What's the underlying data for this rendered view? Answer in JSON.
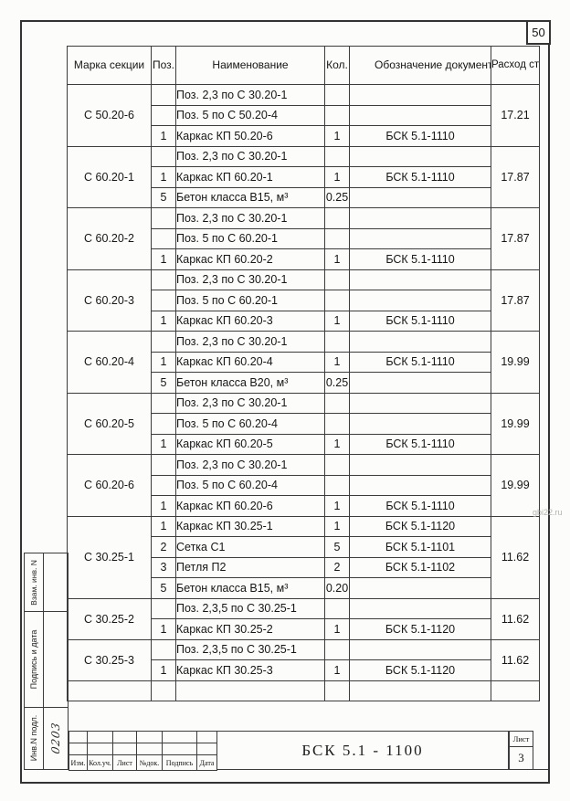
{
  "page": {
    "number": "50",
    "watermark": "gbi22.ru"
  },
  "table": {
    "headers": {
      "mark": "Марка секции",
      "pos": "Поз.",
      "name": "Наименование",
      "qty": "Кол.",
      "doc": "Обозначение документа",
      "steel": "Расход стали, кг"
    },
    "sections": [
      {
        "mark": "С 50.20-6",
        "steel": "17.21",
        "rows": [
          {
            "pos": "",
            "name": "Поз. 2,3 по С 30.20-1",
            "qty": "",
            "doc": ""
          },
          {
            "pos": "",
            "name": "Поз. 5 по С 50.20-4",
            "qty": "",
            "doc": ""
          },
          {
            "pos": "1",
            "name": "Каркас КП 50.20-6",
            "qty": "1",
            "doc": "БСК 5.1-1110"
          }
        ]
      },
      {
        "mark": "С 60.20-1",
        "steel": "17.87",
        "rows": [
          {
            "pos": "",
            "name": "Поз. 2,3 по С 30.20-1",
            "qty": "",
            "doc": ""
          },
          {
            "pos": "1",
            "name": "Каркас КП 60.20-1",
            "qty": "1",
            "doc": "БСК 5.1-1110"
          },
          {
            "pos": "5",
            "name": "Бетон класса В15, м³",
            "qty": "0.25",
            "doc": ""
          }
        ]
      },
      {
        "mark": "С 60.20-2",
        "steel": "17.87",
        "rows": [
          {
            "pos": "",
            "name": "Поз. 2,3 по С 30.20-1",
            "qty": "",
            "doc": ""
          },
          {
            "pos": "",
            "name": "Поз. 5 по С 60.20-1",
            "qty": "",
            "doc": ""
          },
          {
            "pos": "1",
            "name": "Каркас КП 60.20-2",
            "qty": "1",
            "doc": "БСК 5.1-1110"
          }
        ]
      },
      {
        "mark": "С 60.20-3",
        "steel": "17.87",
        "rows": [
          {
            "pos": "",
            "name": "Поз. 2,3 по С 30.20-1",
            "qty": "",
            "doc": ""
          },
          {
            "pos": "",
            "name": "Поз. 5 по С 60.20-1",
            "qty": "",
            "doc": ""
          },
          {
            "pos": "1",
            "name": "Каркас КП 60.20-3",
            "qty": "1",
            "doc": "БСК 5.1-1110"
          }
        ]
      },
      {
        "mark": "С 60.20-4",
        "steel": "19.99",
        "rows": [
          {
            "pos": "",
            "name": "Поз. 2,3 по С 30.20-1",
            "qty": "",
            "doc": ""
          },
          {
            "pos": "1",
            "name": "Каркас КП 60.20-4",
            "qty": "1",
            "doc": "БСК 5.1-1110"
          },
          {
            "pos": "5",
            "name": "Бетон класса В20, м³",
            "qty": "0.25",
            "doc": ""
          }
        ]
      },
      {
        "mark": "С 60.20-5",
        "steel": "19.99",
        "rows": [
          {
            "pos": "",
            "name": "Поз. 2,3 по С 30.20-1",
            "qty": "",
            "doc": ""
          },
          {
            "pos": "",
            "name": "Поз. 5 по С 60.20-4",
            "qty": "",
            "doc": ""
          },
          {
            "pos": "1",
            "name": "Каркас КП 60.20-5",
            "qty": "1",
            "doc": "БСК 5.1-1110"
          }
        ]
      },
      {
        "mark": "С 60.20-6",
        "steel": "19.99",
        "rows": [
          {
            "pos": "",
            "name": "Поз. 2,3 по С 30.20-1",
            "qty": "",
            "doc": ""
          },
          {
            "pos": "",
            "name": "Поз. 5 по С 60.20-4",
            "qty": "",
            "doc": ""
          },
          {
            "pos": "1",
            "name": "Каркас КП 60.20-6",
            "qty": "1",
            "doc": "БСК 5.1-1110"
          }
        ]
      },
      {
        "mark": "С 30.25-1",
        "steel": "11.62",
        "rows": [
          {
            "pos": "1",
            "name": "Каркас КП 30.25-1",
            "qty": "1",
            "doc": "БСК 5.1-1120"
          },
          {
            "pos": "2",
            "name": "Сетка С1",
            "qty": "5",
            "doc": "БСК 5.1-1101"
          },
          {
            "pos": "3",
            "name": "Петля П2",
            "qty": "2",
            "doc": "БСК 5.1-1102"
          },
          {
            "pos": "5",
            "name": "Бетон класса В15, м³",
            "qty": "0.20",
            "doc": ""
          }
        ]
      },
      {
        "mark": "С 30.25-2",
        "steel": "11.62",
        "rows": [
          {
            "pos": "",
            "name": "Поз. 2,3,5 по С 30.25-1",
            "qty": "",
            "doc": ""
          },
          {
            "pos": "1",
            "name": "Каркас КП 30.25-2",
            "qty": "1",
            "doc": "БСК 5.1-1120"
          }
        ]
      },
      {
        "mark": "С 30.25-3",
        "steel": "11.62",
        "rows": [
          {
            "pos": "",
            "name": "Поз. 2,3,5 по С 30.25-1",
            "qty": "",
            "doc": ""
          },
          {
            "pos": "1",
            "name": "Каркас КП 30.25-3",
            "qty": "1",
            "doc": "БСК 5.1-1120"
          }
        ]
      },
      {
        "mark": "",
        "steel": "",
        "rows": [
          {
            "pos": "",
            "name": "",
            "qty": "",
            "doc": ""
          }
        ]
      }
    ]
  },
  "stamp": {
    "columns": [
      "Изм.",
      "Кол.уч.",
      "Лист",
      "№док.",
      "Подпись",
      "Дата"
    ],
    "doc_code": "БСК 5.1 - 1100",
    "sheet_label": "Лист",
    "sheet_number": "3"
  },
  "margin": {
    "labels": [
      "Взам. инв. N",
      "Подпись и дата",
      "Инв.N подл."
    ],
    "inv_number": "0203"
  }
}
